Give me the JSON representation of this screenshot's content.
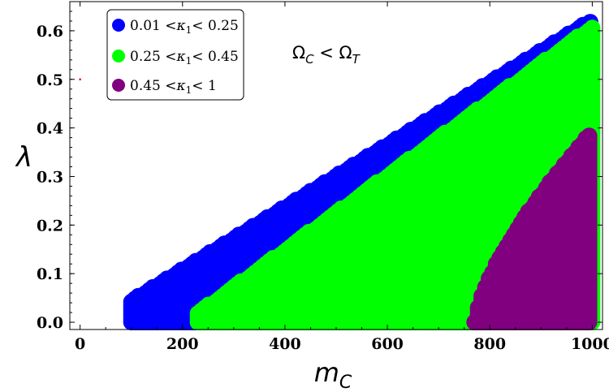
{
  "chart_data": {
    "type": "scatter",
    "xlabel": "m",
    "xlabel_sub": "C",
    "ylabel": "λ",
    "xlim": [
      -20,
      1020
    ],
    "ylim": [
      -0.015,
      0.66
    ],
    "xticks": [
      0,
      200,
      400,
      600,
      800,
      1000
    ],
    "yticks": [
      0.0,
      0.1,
      0.2,
      0.3,
      0.4,
      0.5,
      0.6
    ],
    "xtick_labels": [
      "0",
      "200",
      "400",
      "600",
      "800",
      "1000"
    ],
    "ytick_labels": [
      "0.0",
      "0.1",
      "0.2",
      "0.3",
      "0.4",
      "0.5",
      "0.6"
    ],
    "grid": false,
    "legend_position": "top-left",
    "annotation": {
      "omega": "Ω",
      "sub1": "C",
      "op": " < ",
      "sub2": "T"
    },
    "series": [
      {
        "name": "0.01 <κ1< 0.25",
        "legend_parts": {
          "pre": "0.01 <",
          "kappa": "κ",
          "sub": "1",
          "post": "< 0.25"
        },
        "color": "#0000ff",
        "region": {
          "x_min": 100,
          "x_max": 1000,
          "lambda_upper_at": [
            [
              100,
              0.045
            ],
            [
              1000,
              0.625
            ]
          ]
        }
      },
      {
        "name": "0.25 <κ1< 0.45",
        "legend_parts": {
          "pre": "0.25 <",
          "kappa": "κ",
          "sub": "1",
          "post": "< 0.45"
        },
        "color": "#00ff00",
        "region": {
          "x_min": 230,
          "x_max": 1000,
          "lambda_upper_at": [
            [
              230,
              0.02
            ],
            [
              1000,
              0.61
            ]
          ]
        }
      },
      {
        "name": "0.45 <κ1< 1",
        "legend_parts": {
          "pre": "0.45 <",
          "kappa": "κ",
          "sub": "1",
          "post": "< 1"
        },
        "color": "#800080",
        "region": {
          "x_min": 770,
          "x_max": 1000,
          "lambda_upper_at": [
            [
              770,
              0.0
            ],
            [
              1000,
              0.395
            ]
          ]
        }
      }
    ],
    "outlier_point": {
      "x": 0,
      "y": 0.5,
      "color": "#ff0000"
    }
  }
}
